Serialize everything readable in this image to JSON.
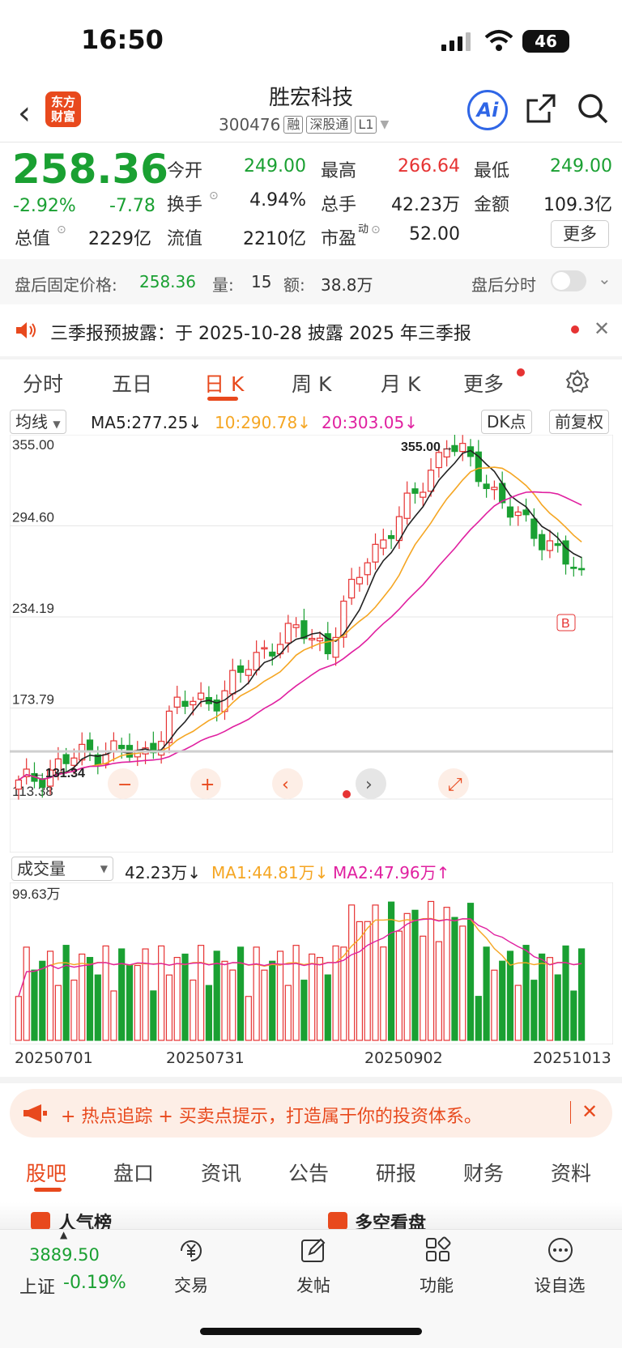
{
  "status": {
    "time": "16:50",
    "battery": "46"
  },
  "header": {
    "logo": "东方\n财富",
    "title": "胜宏科技",
    "code": "300476",
    "tags": [
      "融",
      "深股通",
      "L1"
    ],
    "ai_label": "Ai"
  },
  "quote": {
    "price": "258.36",
    "pct": "-2.92%",
    "chg": "-7.78",
    "open_label": "今开",
    "open": "249.00",
    "high_label": "最高",
    "high": "266.64",
    "low_label": "最低",
    "low": "249.00",
    "turnover_label": "换手",
    "turnover": "4.94%",
    "vol_label": "总手",
    "vol": "42.23万",
    "amount_label": "金额",
    "amount": "109.3亿",
    "mcap_label": "总值",
    "mcap": "2229亿",
    "float_label": "流值",
    "float": "2210亿",
    "pe_label": "市盈",
    "pe_sup": "动",
    "pe": "52.00",
    "more": "更多"
  },
  "after_hours": {
    "label": "盘后固定价格:",
    "price": "258.36",
    "qty_label": "量:",
    "qty": "15",
    "amt_label": "额:",
    "amt": "38.8万",
    "right": "盘后分时"
  },
  "notice": {
    "text": "三季报预披露：于 2025-10-28 披露 2025 年三季报"
  },
  "tabs": [
    "分时",
    "五日",
    "日 K",
    "周 K",
    "月 K",
    "更多"
  ],
  "ma": {
    "select": "均线",
    "ma5": "MA5:277.25↓",
    "ma10": "10:290.78↓",
    "ma20": "20:303.05↓",
    "dk": "DK点",
    "adj": "前复权"
  },
  "chart_data": {
    "type": "candlestick",
    "y_ticks": [
      "355.00",
      "294.60",
      "234.19",
      "173.79",
      "113.38"
    ],
    "ylim": [
      113.38,
      355.0
    ],
    "high_marker": "355.00",
    "low_marker": "131.34",
    "badge": "B",
    "x_labels": [
      "20250701",
      "20250731",
      "20250902",
      "20251013"
    ],
    "volume": {
      "select": "成交量",
      "vol": "42.23万↓",
      "ma1": "MA1:44.81万↓",
      "ma2": "MA2:47.96万↑",
      "max_label": "99.63万",
      "max": 99.63
    }
  },
  "colors": {
    "up": "#e63333",
    "down": "#1aa032",
    "ma5": "#222222",
    "ma10": "#f5a623",
    "ma20": "#e020a0",
    "accent": "#e8491d"
  },
  "promo": {
    "text": "+ 热点追踪 + 买卖点提示，打造属于你的投资体系。"
  },
  "bottom_tabs": [
    "股吧",
    "盘口",
    "资讯",
    "公告",
    "研报",
    "财务",
    "资料"
  ],
  "peek": {
    "left": "人气榜",
    "right": "多空看盘"
  },
  "bottombar": {
    "index_value": "3889.50",
    "index_name": "上证",
    "index_pct": "-0.19%",
    "items": [
      "交易",
      "发帖",
      "功能",
      "设自选"
    ]
  }
}
